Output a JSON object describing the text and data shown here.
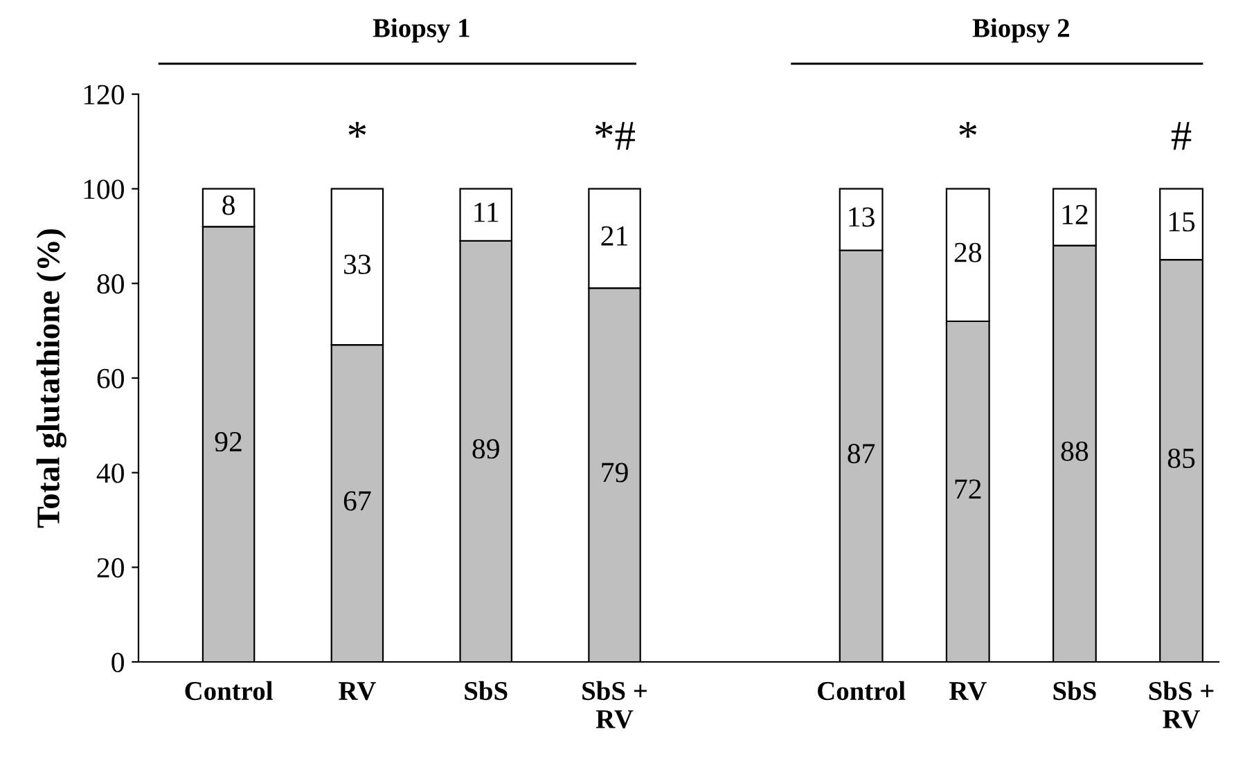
{
  "chart_data": [
    {
      "type": "bar",
      "title": "Biopsy 1",
      "ylabel": "Total glutathione (%)",
      "categories": [
        "Control",
        "RV",
        "SbS",
        "SbS +\nRV"
      ],
      "stacked": true,
      "data_labels": true,
      "ylim": [
        0,
        120
      ],
      "yticks": [
        0,
        20,
        40,
        60,
        80,
        100,
        120
      ],
      "grid": false,
      "legend": false,
      "series": [
        {
          "color": "#bfbfbf",
          "values": [
            92,
            67,
            89,
            79
          ]
        },
        {
          "color": "#ffffff",
          "values": [
            8,
            33,
            11,
            21
          ]
        }
      ],
      "annotations": [
        "*",
        "*#"
      ]
    },
    {
      "type": "bar",
      "title": "Biopsy 2",
      "categories": [
        "Control",
        "RV",
        "SbS",
        "SbS +\nRV"
      ],
      "stacked": true,
      "data_labels": true,
      "ylim": [
        0,
        120
      ],
      "tick_labels": "x",
      "grid": false,
      "legend": false,
      "series": [
        {
          "color": "#bfbfbf",
          "values": [
            87,
            72,
            88,
            85
          ]
        },
        {
          "color": "#ffffff",
          "values": [
            13,
            28,
            12,
            15
          ]
        }
      ],
      "annotations": [
        "*",
        "#"
      ]
    }
  ]
}
